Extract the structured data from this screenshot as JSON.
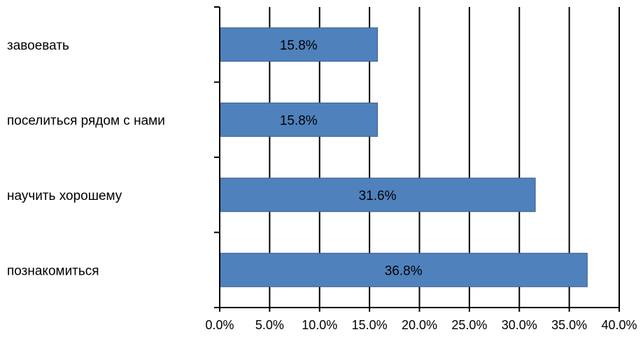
{
  "chart_data": {
    "type": "bar",
    "orientation": "horizontal",
    "title": "",
    "xlabel": "",
    "ylabel": "",
    "categories": [
      "завоевать",
      "поселиться рядом с нами",
      "научить хорошему",
      "познакомиться"
    ],
    "values": [
      15.8,
      15.8,
      31.6,
      36.8
    ],
    "data_labels": [
      "15.8%",
      "15.8%",
      "31.6%",
      "36.8%"
    ],
    "xlim": [
      0,
      40
    ],
    "x_ticks": [
      0,
      5,
      10,
      15,
      20,
      25,
      30,
      35,
      40
    ],
    "x_tick_labels": [
      "0.0%",
      "5.0%",
      "10.0%",
      "15.0%",
      "20.0%",
      "25.0%",
      "30.0%",
      "35.0%",
      "40.0%"
    ],
    "grid": "vertical",
    "legend": "none",
    "bar_color": "#4f81bd",
    "bar_border_color": "#385d8a",
    "grid_color": "#000000"
  }
}
